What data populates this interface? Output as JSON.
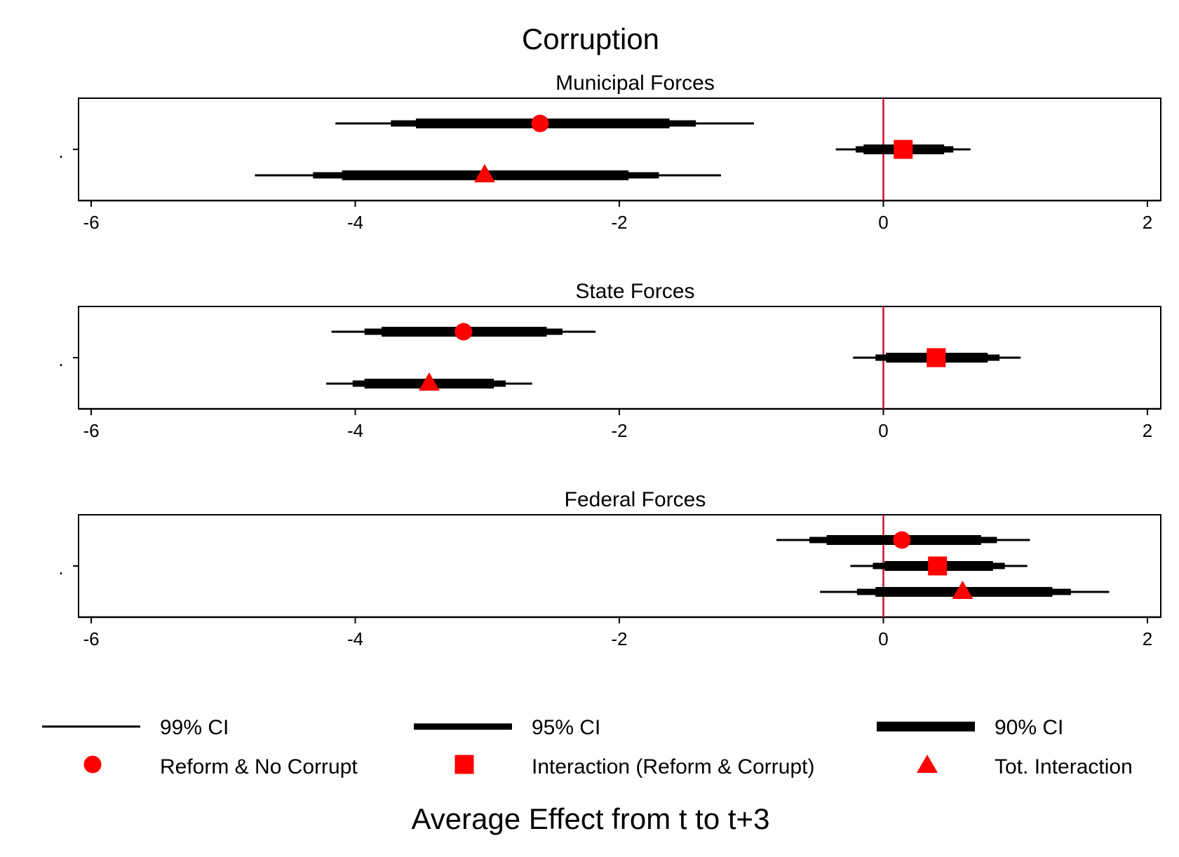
{
  "chart_data": {
    "type": "coefficient-plot",
    "title": "Corruption",
    "xlabel": "Average Effect from t to t+3",
    "xlim": [
      -6.05,
      2.1
    ],
    "xticks": [
      -6,
      -4,
      -2,
      0,
      2
    ],
    "xtick_labels": [
      "-6",
      "-4",
      "-2",
      "0",
      "2"
    ],
    "y_tick_label": ".",
    "reference_line": {
      "x": 0,
      "color": "#c8102e"
    },
    "marker_color": "#ff0000",
    "series": [
      {
        "key": "reform_no_corrupt",
        "name": "Reform & No Corrupt",
        "marker": "circle"
      },
      {
        "key": "interaction",
        "name": "Interaction (Reform & Corrupt)",
        "marker": "square"
      },
      {
        "key": "tot_interaction",
        "name": "Tot. Interaction",
        "marker": "triangle"
      }
    ],
    "ci_levels": [
      {
        "level": "99% CI",
        "weight": 3
      },
      {
        "level": "95% CI",
        "weight": 10
      },
      {
        "level": "90% CI",
        "weight": 15
      }
    ],
    "panels": [
      {
        "title": "Municipal Forces",
        "estimates": [
          {
            "series": "reform_no_corrupt",
            "point": -2.6,
            "ci99": [
              -4.15,
              -0.98
            ],
            "ci95": [
              -3.73,
              -1.42
            ],
            "ci90": [
              -3.54,
              -1.62
            ]
          },
          {
            "series": "interaction",
            "point": 0.15,
            "ci99": [
              -0.36,
              0.66
            ],
            "ci95": [
              -0.21,
              0.53
            ],
            "ci90": [
              -0.15,
              0.46
            ]
          },
          {
            "series": "tot_interaction",
            "point": -3.02,
            "ci99": [
              -4.76,
              -1.23
            ],
            "ci95": [
              -4.32,
              -1.7
            ],
            "ci90": [
              -4.1,
              -1.93
            ]
          }
        ]
      },
      {
        "title": "State Forces",
        "estimates": [
          {
            "series": "reform_no_corrupt",
            "point": -3.18,
            "ci99": [
              -4.18,
              -2.18
            ],
            "ci95": [
              -3.93,
              -2.43
            ],
            "ci90": [
              -3.8,
              -2.55
            ]
          },
          {
            "series": "interaction",
            "point": 0.4,
            "ci99": [
              -0.23,
              1.04
            ],
            "ci95": [
              -0.06,
              0.88
            ],
            "ci90": [
              0.02,
              0.79
            ]
          },
          {
            "series": "tot_interaction",
            "point": -3.44,
            "ci99": [
              -4.22,
              -2.66
            ],
            "ci95": [
              -4.02,
              -2.86
            ],
            "ci90": [
              -3.93,
              -2.95
            ]
          }
        ]
      },
      {
        "title": "Federal Forces",
        "estimates": [
          {
            "series": "reform_no_corrupt",
            "point": 0.14,
            "ci99": [
              -0.81,
              1.11
            ],
            "ci95": [
              -0.56,
              0.86
            ],
            "ci90": [
              -0.43,
              0.74
            ]
          },
          {
            "series": "interaction",
            "point": 0.41,
            "ci99": [
              -0.25,
              1.09
            ],
            "ci95": [
              -0.08,
              0.92
            ],
            "ci90": [
              0.01,
              0.83
            ]
          },
          {
            "series": "tot_interaction",
            "point": 0.6,
            "ci99": [
              -0.48,
              1.71
            ],
            "ci95": [
              -0.2,
              1.42
            ],
            "ci90": [
              -0.06,
              1.28
            ]
          }
        ]
      }
    ]
  }
}
